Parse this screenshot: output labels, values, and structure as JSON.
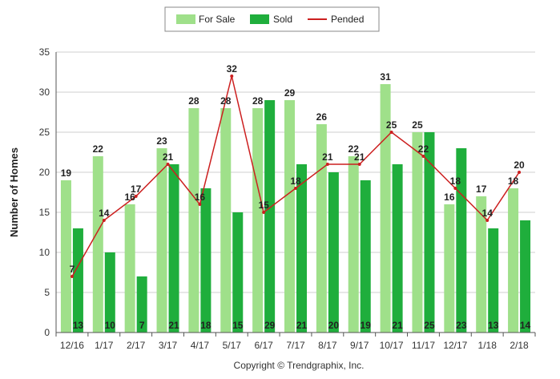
{
  "chart_data": {
    "type": "bar",
    "categories": [
      "12/16",
      "1/17",
      "2/17",
      "3/17",
      "4/17",
      "5/17",
      "6/17",
      "7/17",
      "8/17",
      "9/17",
      "10/17",
      "11/17",
      "12/17",
      "1/18",
      "2/18"
    ],
    "series": [
      {
        "name": "For Sale",
        "kind": "bar",
        "color": "#9fe08a",
        "values": [
          19,
          22,
          16,
          23,
          28,
          28,
          28,
          29,
          26,
          22,
          31,
          25,
          16,
          17,
          18
        ]
      },
      {
        "name": "Sold",
        "kind": "bar",
        "color": "#1fae3c",
        "values": [
          13,
          10,
          7,
          21,
          18,
          15,
          29,
          21,
          20,
          19,
          21,
          25,
          23,
          13,
          14
        ]
      },
      {
        "name": "Pended",
        "kind": "line",
        "color": "#cc1f1f",
        "values": [
          7,
          14,
          17,
          21,
          16,
          32,
          15,
          18,
          21,
          21,
          25,
          22,
          18,
          14,
          20
        ]
      }
    ],
    "ylabel": "Number of Homes",
    "ylim": [
      0,
      35
    ],
    "yticks": [
      0,
      5,
      10,
      15,
      20,
      25,
      30,
      35
    ],
    "grid": true,
    "legend_position": "top-center"
  },
  "footer": {
    "copyright": "Copyright © Trendgraphix, Inc."
  }
}
